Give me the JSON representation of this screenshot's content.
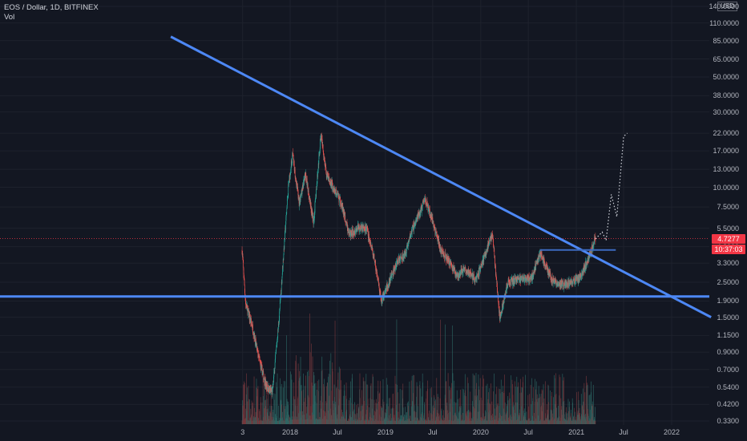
{
  "header": {
    "symbol_line": "EOS / Dollar, 1D, BITFINEX",
    "volume_label": "Vol"
  },
  "currency_button": "USD",
  "price_tags": {
    "last_price": "4.7277",
    "countdown": "10:37:03",
    "last_color": "#f23645",
    "countdown_color": "#f23645"
  },
  "chart_data": {
    "type": "candlestick",
    "title": "EOS / Dollar, 1D, BITFINEX",
    "y_scale": "log",
    "y_ticks": [
      "140.0000",
      "110.0000",
      "85.0000",
      "65.0000",
      "50.0000",
      "38.0000",
      "30.0000",
      "22.0000",
      "17.0000",
      "13.0000",
      "10.0000",
      "7.5000",
      "5.5000",
      "4.2000",
      "3.3000",
      "2.5000",
      "1.9000",
      "1.5000",
      "1.1500",
      "0.9000",
      "0.7000",
      "0.5400",
      "0.4200",
      "0.3300"
    ],
    "x_ticks": [
      "3",
      "2018",
      "Jul",
      "2019",
      "Jul",
      "2020",
      "Jul",
      "2021",
      "Jul",
      "2022"
    ],
    "price_path": [
      {
        "date": "2017-07-01",
        "close": 4.0
      },
      {
        "date": "2017-07-15",
        "close": 1.8
      },
      {
        "date": "2017-08-10",
        "close": 1.3
      },
      {
        "date": "2017-09-01",
        "close": 0.85
      },
      {
        "date": "2017-10-01",
        "close": 0.55
      },
      {
        "date": "2017-10-25",
        "close": 0.5
      },
      {
        "date": "2017-11-20",
        "close": 1.5
      },
      {
        "date": "2017-12-10",
        "close": 4.5
      },
      {
        "date": "2017-12-25",
        "close": 10.0
      },
      {
        "date": "2018-01-10",
        "close": 16.0
      },
      {
        "date": "2018-02-05",
        "close": 8.0
      },
      {
        "date": "2018-03-01",
        "close": 12.0
      },
      {
        "date": "2018-04-01",
        "close": 6.0
      },
      {
        "date": "2018-04-29",
        "close": 22.0
      },
      {
        "date": "2018-05-20",
        "close": 12.0
      },
      {
        "date": "2018-06-15",
        "close": 10.0
      },
      {
        "date": "2018-07-15",
        "close": 8.0
      },
      {
        "date": "2018-08-15",
        "close": 5.0
      },
      {
        "date": "2018-09-15",
        "close": 5.5
      },
      {
        "date": "2018-10-20",
        "close": 5.5
      },
      {
        "date": "2018-11-20",
        "close": 3.5
      },
      {
        "date": "2018-12-15",
        "close": 1.9
      },
      {
        "date": "2019-01-15",
        "close": 2.5
      },
      {
        "date": "2019-02-15",
        "close": 3.4
      },
      {
        "date": "2019-03-15",
        "close": 3.7
      },
      {
        "date": "2019-04-15",
        "close": 5.5
      },
      {
        "date": "2019-05-15",
        "close": 7.0
      },
      {
        "date": "2019-06-01",
        "close": 8.5
      },
      {
        "date": "2019-07-01",
        "close": 6.0
      },
      {
        "date": "2019-08-01",
        "close": 4.0
      },
      {
        "date": "2019-09-01",
        "close": 3.4
      },
      {
        "date": "2019-10-01",
        "close": 2.8
      },
      {
        "date": "2019-11-01",
        "close": 3.0
      },
      {
        "date": "2019-12-15",
        "close": 2.6
      },
      {
        "date": "2020-02-15",
        "close": 5.1
      },
      {
        "date": "2020-03-13",
        "close": 1.5
      },
      {
        "date": "2020-04-15",
        "close": 2.5
      },
      {
        "date": "2020-06-01",
        "close": 2.6
      },
      {
        "date": "2020-07-15",
        "close": 2.7
      },
      {
        "date": "2020-08-15",
        "close": 3.8
      },
      {
        "date": "2020-10-01",
        "close": 2.6
      },
      {
        "date": "2020-11-15",
        "close": 2.4
      },
      {
        "date": "2020-12-15",
        "close": 2.5
      },
      {
        "date": "2021-01-15",
        "close": 2.7
      },
      {
        "date": "2021-02-15",
        "close": 3.5
      },
      {
        "date": "2021-03-15",
        "close": 4.73
      }
    ],
    "projection_path": [
      {
        "date": "2021-03-15",
        "close": 4.7
      },
      {
        "date": "2021-04-10",
        "close": 5.2
      },
      {
        "date": "2021-04-25",
        "close": 4.6
      },
      {
        "date": "2021-05-15",
        "close": 9.0
      },
      {
        "date": "2021-06-05",
        "close": 6.5
      },
      {
        "date": "2021-07-01",
        "close": 21.0
      },
      {
        "date": "2021-07-15",
        "close": 22.0
      }
    ],
    "trendlines": [
      {
        "name": "descending-resistance",
        "from": {
          "date": "2016-10-01",
          "price": 90
        },
        "to": {
          "date": "2022-06-01",
          "price": 1.5
        }
      },
      {
        "name": "horizontal-support",
        "price": 2.03
      },
      {
        "name": "short-resistance",
        "price": 4.0,
        "from_date": "2020-08-15",
        "to_date": "2021-06-01"
      }
    ],
    "last_price": 4.7277,
    "colors": {
      "up": "#26a69a",
      "down": "#ef5350",
      "trendline": "#4d88f5",
      "support_short": "#3c6abf"
    }
  }
}
